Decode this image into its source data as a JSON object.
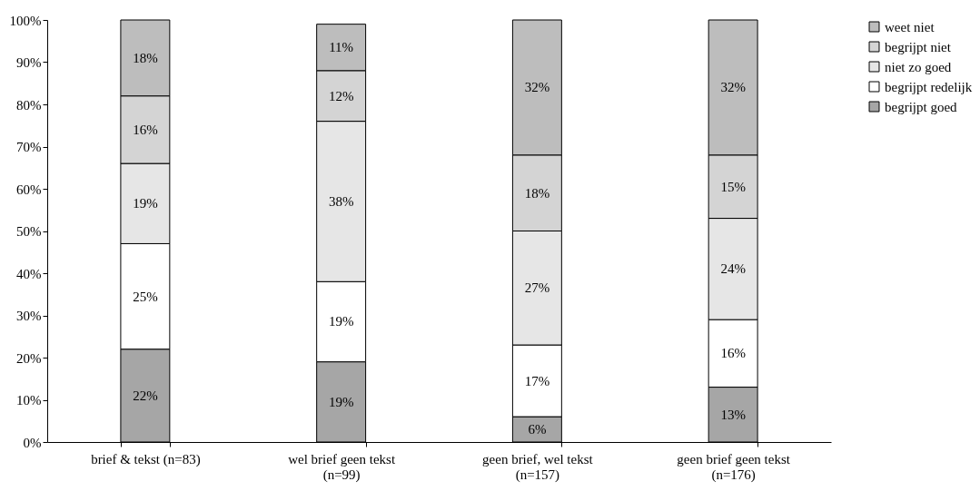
{
  "chart_data": {
    "type": "bar",
    "stacked": true,
    "categories": [
      "brief & tekst (n=83)",
      "wel brief geen tekst (n=99)",
      "geen brief, wel tekst (n=157)",
      "geen brief geen tekst (n=176)"
    ],
    "series": [
      {
        "name": "begrijpt goed",
        "color": "#a6a6a6",
        "values": [
          22,
          19,
          6,
          13
        ],
        "value_labels": [
          "22%",
          "19%",
          "6%",
          "13%"
        ]
      },
      {
        "name": "begrijpt redelijk",
        "color": "#ffffff",
        "values": [
          25,
          19,
          17,
          16
        ],
        "value_labels": [
          "25%",
          "19%",
          "17%",
          "16%"
        ]
      },
      {
        "name": "niet zo goed",
        "color": "#e6e6e6",
        "values": [
          19,
          38,
          27,
          24
        ],
        "value_labels": [
          "19%",
          "38%",
          "27%",
          "24%"
        ]
      },
      {
        "name": "begrijpt niet",
        "color": "#d4d4d4",
        "values": [
          16,
          12,
          18,
          15
        ],
        "value_labels": [
          "16%",
          "12%",
          "18%",
          "15%"
        ]
      },
      {
        "name": "weet niet",
        "color": "#bdbdbd",
        "values": [
          18,
          11,
          32,
          32
        ],
        "value_labels": [
          "18%",
          "11%",
          "32%",
          "32%"
        ]
      }
    ],
    "ylim": [
      0,
      100
    ],
    "yticks": [
      {
        "value": 0,
        "label": "0%"
      },
      {
        "value": 10,
        "label": "10%"
      },
      {
        "value": 20,
        "label": "20%"
      },
      {
        "value": 30,
        "label": "30%"
      },
      {
        "value": 40,
        "label": "40%"
      },
      {
        "value": 50,
        "label": "50%"
      },
      {
        "value": 60,
        "label": "60%"
      },
      {
        "value": 70,
        "label": "70%"
      },
      {
        "value": 80,
        "label": "80%"
      },
      {
        "value": 90,
        "label": "90%"
      },
      {
        "value": 100,
        "label": "100%"
      }
    ],
    "grid": false,
    "legend": "right"
  }
}
